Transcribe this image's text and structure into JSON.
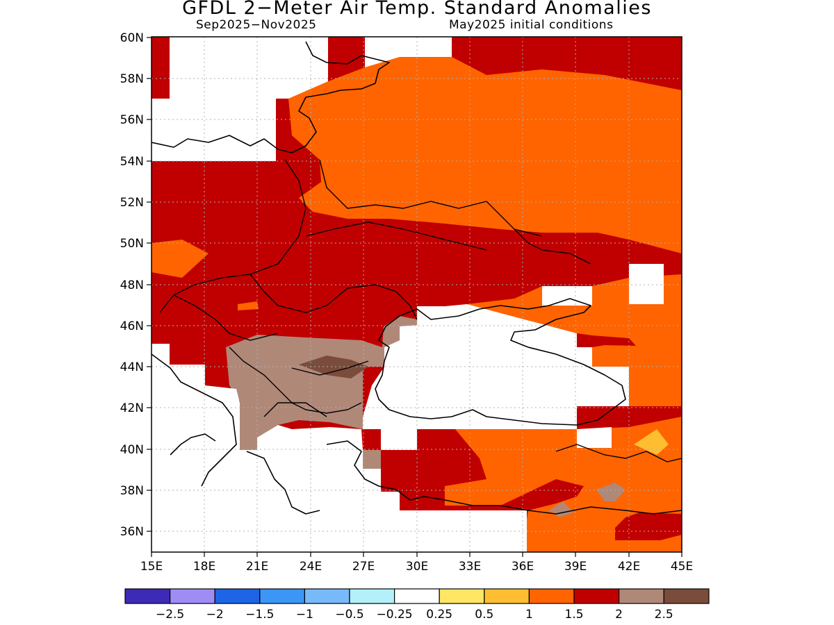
{
  "title": "GFDL 2−Meter Air Temp. Standard Anomalies",
  "subtitle_left": "Sep2025−Nov2025",
  "subtitle_right": "May2025 initial conditions",
  "lat_labels": [
    "60N",
    "58N",
    "56N",
    "54N",
    "52N",
    "50N",
    "48N",
    "46N",
    "44N",
    "42N",
    "40N",
    "38N",
    "36N"
  ],
  "lon_labels": [
    "15E",
    "18E",
    "21E",
    "24E",
    "27E",
    "30E",
    "33E",
    "36E",
    "39E",
    "42E",
    "45E"
  ],
  "colorbar": {
    "colors": [
      "#3d2bb8",
      "#a08cf5",
      "#1e64e6",
      "#3c96f5",
      "#78b9fa",
      "#b4f0fa",
      "#ffffff",
      "#ffe664",
      "#ffbe32",
      "#ff6400",
      "#c00000",
      "#b08878",
      "#7a4c3c"
    ],
    "labels": [
      "−2.5",
      "−2",
      "−1.5",
      "−1",
      "−0.5",
      "−0.25",
      "0.25",
      "0.5",
      "1",
      "1.5",
      "2",
      "2.5"
    ]
  }
}
